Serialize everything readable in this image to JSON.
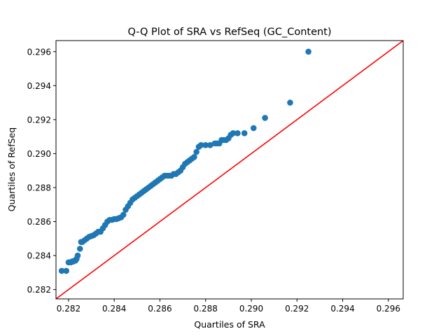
{
  "chart_data": {
    "type": "scatter",
    "title": "Q-Q Plot of SRA vs RefSeq (GC_Content)",
    "xlabel": "Quartiles of SRA",
    "ylabel": "Quartiles of RefSeq",
    "xlim": [
      0.28145,
      0.29665
    ],
    "ylim": [
      0.28145,
      0.29665
    ],
    "xticks": [
      0.282,
      0.284,
      0.286,
      0.288,
      0.29,
      0.292,
      0.294,
      0.296
    ],
    "yticks": [
      0.282,
      0.284,
      0.286,
      0.288,
      0.29,
      0.292,
      0.294,
      0.296
    ],
    "tick_labels": [
      "0.282",
      "0.284",
      "0.286",
      "0.288",
      "0.290",
      "0.292",
      "0.294",
      "0.296"
    ],
    "grid": false,
    "colors": {
      "points": "#1f77b4",
      "reference_line": "#ff0000",
      "axes": "#000000"
    },
    "reference_line": {
      "from": [
        0.28145,
        0.28145
      ],
      "to": [
        0.29665,
        0.29665
      ]
    },
    "points": [
      [
        0.2817,
        0.2831
      ],
      [
        0.2819,
        0.2831
      ],
      [
        0.282,
        0.2836
      ],
      [
        0.2821,
        0.2836
      ],
      [
        0.28215,
        0.28365
      ],
      [
        0.2822,
        0.28365
      ],
      [
        0.28225,
        0.2837
      ],
      [
        0.2823,
        0.2837
      ],
      [
        0.28235,
        0.2838
      ],
      [
        0.2824,
        0.284
      ],
      [
        0.2825,
        0.2844
      ],
      [
        0.28255,
        0.2848
      ],
      [
        0.2826,
        0.2848
      ],
      [
        0.2827,
        0.2849
      ],
      [
        0.2828,
        0.285
      ],
      [
        0.2829,
        0.2851
      ],
      [
        0.283,
        0.28515
      ],
      [
        0.2831,
        0.2852
      ],
      [
        0.2832,
        0.2853
      ],
      [
        0.2833,
        0.2854
      ],
      [
        0.2834,
        0.2854
      ],
      [
        0.2835,
        0.2856
      ],
      [
        0.2836,
        0.2858
      ],
      [
        0.2837,
        0.286
      ],
      [
        0.2838,
        0.2861
      ],
      [
        0.2839,
        0.2861
      ],
      [
        0.284,
        0.28615
      ],
      [
        0.2841,
        0.28615
      ],
      [
        0.2842,
        0.2862
      ],
      [
        0.2843,
        0.28625
      ],
      [
        0.2844,
        0.2864
      ],
      [
        0.2845,
        0.2867
      ],
      [
        0.2846,
        0.2869
      ],
      [
        0.2847,
        0.2871
      ],
      [
        0.2848,
        0.2873
      ],
      [
        0.2849,
        0.2874
      ],
      [
        0.285,
        0.2875
      ],
      [
        0.2851,
        0.2876
      ],
      [
        0.2852,
        0.2877
      ],
      [
        0.2853,
        0.2878
      ],
      [
        0.2854,
        0.2879
      ],
      [
        0.2855,
        0.288
      ],
      [
        0.2856,
        0.2881
      ],
      [
        0.2857,
        0.2882
      ],
      [
        0.2858,
        0.2883
      ],
      [
        0.2859,
        0.2884
      ],
      [
        0.286,
        0.2885
      ],
      [
        0.2861,
        0.2886
      ],
      [
        0.2862,
        0.2887
      ],
      [
        0.2863,
        0.2887
      ],
      [
        0.2864,
        0.2887
      ],
      [
        0.2865,
        0.2887
      ],
      [
        0.2866,
        0.2888
      ],
      [
        0.2867,
        0.2888
      ],
      [
        0.2868,
        0.2889
      ],
      [
        0.2869,
        0.289
      ],
      [
        0.287,
        0.2892
      ],
      [
        0.2871,
        0.2894
      ],
      [
        0.2872,
        0.2895
      ],
      [
        0.2873,
        0.2896
      ],
      [
        0.2874,
        0.2897
      ],
      [
        0.2875,
        0.2898
      ],
      [
        0.2876,
        0.2901
      ],
      [
        0.2877,
        0.2904
      ],
      [
        0.2878,
        0.2905
      ],
      [
        0.288,
        0.2905
      ],
      [
        0.2882,
        0.2905
      ],
      [
        0.2884,
        0.2906
      ],
      [
        0.2885,
        0.2906
      ],
      [
        0.2886,
        0.2906
      ],
      [
        0.2887,
        0.2908
      ],
      [
        0.2888,
        0.2908
      ],
      [
        0.2889,
        0.2908
      ],
      [
        0.289,
        0.2909
      ],
      [
        0.2891,
        0.2911
      ],
      [
        0.2892,
        0.2912
      ],
      [
        0.2894,
        0.2912
      ],
      [
        0.2897,
        0.2912
      ],
      [
        0.2901,
        0.2915
      ],
      [
        0.2906,
        0.2921
      ],
      [
        0.2917,
        0.293
      ],
      [
        0.2925,
        0.296
      ]
    ]
  }
}
